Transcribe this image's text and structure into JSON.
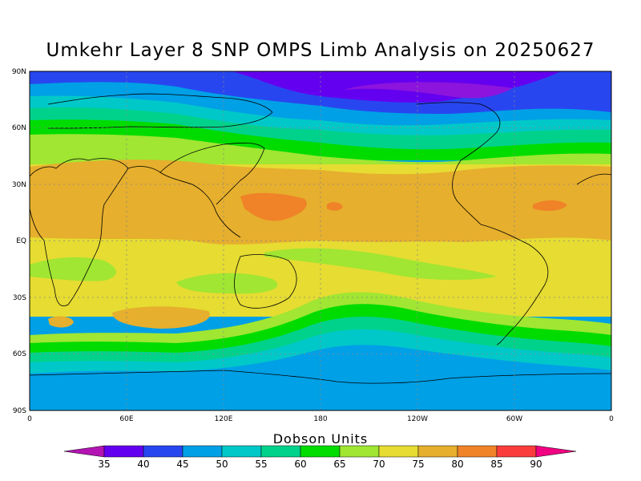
{
  "title": "Umkehr Layer 8 SNP OMPS Limb Analysis on 20250627",
  "colorbar": {
    "label": "Dobson Units",
    "levels": [
      "35",
      "40",
      "45",
      "50",
      "55",
      "60",
      "65",
      "70",
      "75",
      "80",
      "85",
      "90"
    ],
    "colors": {
      "under": "#b414b4",
      "c30_35": "#8c14dc",
      "c35_40": "#6400f0",
      "c40_45": "#2846f0",
      "c45_50": "#00a0e6",
      "c50_55": "#00c8c8",
      "c55_60": "#00d28c",
      "c60_65": "#00dc00",
      "c65_70": "#a0e632",
      "c70_75": "#e6dc32",
      "c75_80": "#e6af2d",
      "c80_85": "#f08228",
      "c85_90": "#fa3c3c",
      "over": "#f00082"
    }
  },
  "axes": {
    "lat_labels": [
      "90N",
      "60N",
      "30N",
      "EQ",
      "30S",
      "60S",
      "90S"
    ],
    "lon_labels": [
      "0",
      "60E",
      "120E",
      "180",
      "120W",
      "60W",
      "0"
    ]
  }
}
